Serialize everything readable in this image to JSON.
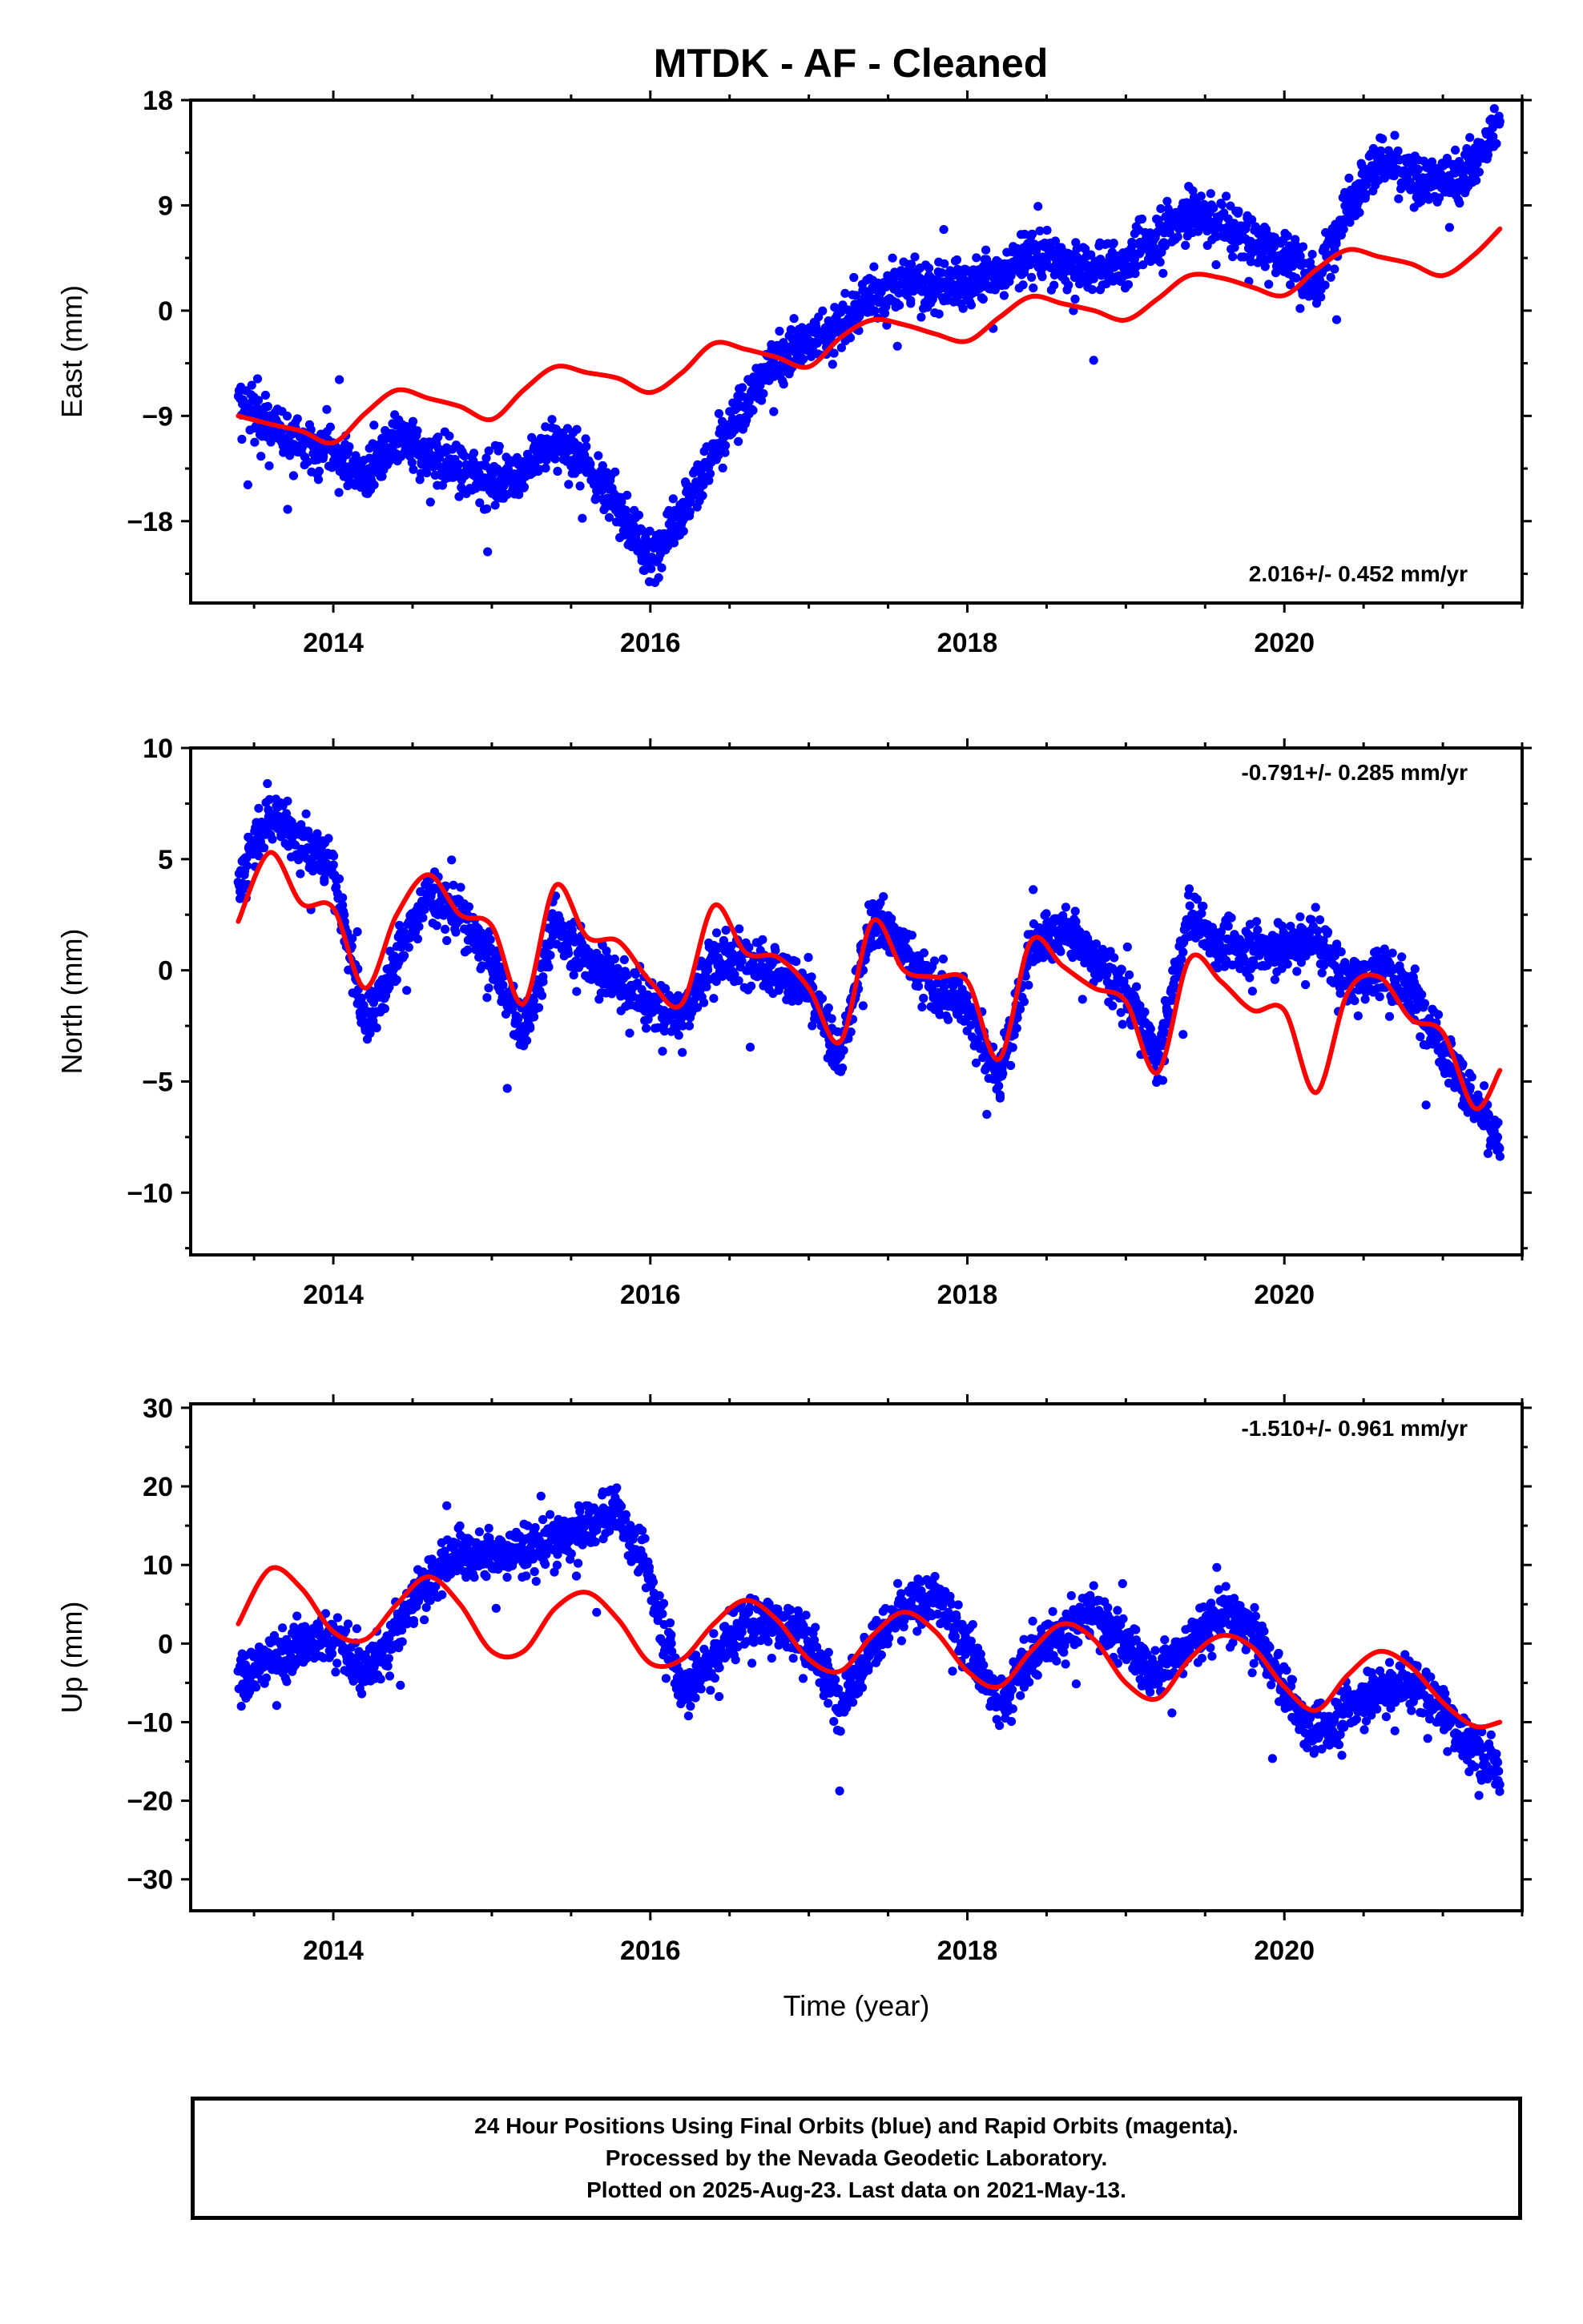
{
  "title": "MTDK  - AF - Cleaned",
  "footer": {
    "lines": [
      "24 Hour Positions Using Final Orbits (blue) and Rapid Orbits (magenta).",
      "Processed by the Nevada Geodetic Laboratory.",
      "Plotted on 2025-Aug-23. Last data on 2021-May-13."
    ]
  },
  "colors": {
    "final_orbits": "#0000ff",
    "rapid_orbits": "#ff00ff",
    "model": "#ff0000",
    "frame": "#000000"
  },
  "chart_data": [
    {
      "type": "scatter",
      "component": "East",
      "ylabel": "East (mm)",
      "xlabel": "",
      "xlim": [
        2013.1,
        2021.5
      ],
      "ylim": [
        -25,
        18
      ],
      "xticks": [
        2014,
        2016,
        2018,
        2020
      ],
      "yticks": [
        -18,
        -9,
        0,
        9,
        18
      ],
      "ytick_labels": [
        "−18",
        "−9",
        "0",
        "9",
        "18"
      ],
      "rate_label": "2.016+/- 0.452 mm/yr",
      "rate_position": "bottom-right",
      "observations": {
        "name": "",
        "x": [
          2013.4,
          2013.6,
          2013.8,
          2014.0,
          2014.2,
          2014.4,
          2014.6,
          2014.8,
          2015.0,
          2015.2,
          2015.4,
          2015.6,
          2015.8,
          2016.0,
          2016.2,
          2016.4,
          2016.6,
          2016.8,
          2017.0,
          2017.2,
          2017.4,
          2017.6,
          2017.8,
          2018.0,
          2018.2,
          2018.4,
          2018.6,
          2018.8,
          2019.0,
          2019.2,
          2019.4,
          2019.6,
          2019.8,
          2020.0,
          2020.2,
          2020.4,
          2020.6,
          2020.8,
          2021.0,
          2021.2,
          2021.36
        ],
        "y": [
          -8.0,
          -10.0,
          -11.5,
          -12.0,
          -14.5,
          -11.0,
          -12.5,
          -13.5,
          -14.5,
          -14.0,
          -11.0,
          -13.0,
          -17.0,
          -21.5,
          -17.0,
          -12.5,
          -8.0,
          -4.0,
          -2.5,
          -1.5,
          1.5,
          2.5,
          2.0,
          2.5,
          3.0,
          5.0,
          4.0,
          3.5,
          4.0,
          6.5,
          8.5,
          7.5,
          6.0,
          5.0,
          2.0,
          9.0,
          13.0,
          11.0,
          11.0,
          12.5,
          16.5
        ]
      },
      "model": {
        "name": "",
        "x": [
          2013.4,
          2013.6,
          2013.8,
          2014.0,
          2014.2,
          2014.4,
          2014.6,
          2014.8,
          2015.0,
          2015.2,
          2015.4,
          2015.6,
          2015.8,
          2016.0,
          2016.2,
          2016.4,
          2016.6,
          2016.8,
          2017.0,
          2017.2,
          2017.4,
          2017.6,
          2017.8,
          2018.0,
          2018.2,
          2018.4,
          2018.6,
          2018.8,
          2019.0,
          2019.2,
          2019.4,
          2019.6,
          2019.8,
          2020.0,
          2020.2,
          2020.4,
          2020.6,
          2020.8,
          2021.0,
          2021.2,
          2021.36
        ],
        "y": [
          -9.0,
          -9.7,
          -10.3,
          -11.3,
          -8.8,
          -6.8,
          -7.5,
          -8.2,
          -9.3,
          -6.8,
          -4.8,
          -5.3,
          -5.8,
          -7.0,
          -5.3,
          -2.8,
          -3.3,
          -4.0,
          -4.8,
          -2.3,
          -0.8,
          -1.2,
          -2.0,
          -2.6,
          -0.6,
          1.2,
          0.6,
          0.0,
          -0.8,
          1.0,
          3.0,
          2.8,
          2.0,
          1.3,
          3.5,
          5.2,
          4.6,
          4.0,
          3.0,
          4.8,
          7.0
        ]
      }
    },
    {
      "type": "scatter",
      "component": "North",
      "ylabel": "North (mm)",
      "xlabel": "",
      "xlim": [
        2013.1,
        2021.5
      ],
      "ylim": [
        -12.8,
        10
      ],
      "xticks": [
        2014,
        2016,
        2018,
        2020
      ],
      "yticks": [
        -10,
        -5,
        0,
        5,
        10
      ],
      "ytick_labels": [
        "−10",
        "−5",
        "0",
        "5",
        "10"
      ],
      "rate_label": "-0.791+/- 0.285 mm/yr",
      "rate_position": "top-right",
      "observations": {
        "name": "",
        "x": [
          2013.4,
          2013.6,
          2013.8,
          2014.0,
          2014.2,
          2014.4,
          2014.6,
          2014.8,
          2015.0,
          2015.2,
          2015.4,
          2015.6,
          2015.8,
          2016.0,
          2016.2,
          2016.4,
          2016.6,
          2016.8,
          2017.0,
          2017.2,
          2017.4,
          2017.6,
          2017.8,
          2018.0,
          2018.2,
          2018.4,
          2018.6,
          2018.8,
          2019.0,
          2019.2,
          2019.4,
          2019.6,
          2019.8,
          2020.0,
          2020.2,
          2020.4,
          2020.6,
          2020.8,
          2021.0,
          2021.2,
          2021.36
        ],
        "y": [
          4.0,
          7.0,
          6.0,
          4.5,
          -2.5,
          0.5,
          3.5,
          2.5,
          0.5,
          -3.0,
          2.0,
          0.5,
          -0.5,
          -1.5,
          -2.0,
          0.5,
          0.5,
          0.0,
          -1.0,
          -4.0,
          2.5,
          1.0,
          -1.0,
          -1.5,
          -5.0,
          1.0,
          2.0,
          0.5,
          -1.0,
          -4.0,
          2.5,
          1.0,
          1.0,
          1.0,
          1.5,
          -0.5,
          0.0,
          -1.0,
          -3.5,
          -6.0,
          -8.0
        ]
      },
      "model": {
        "name": "",
        "x": [
          2013.4,
          2013.6,
          2013.8,
          2014.0,
          2014.2,
          2014.4,
          2014.6,
          2014.8,
          2015.0,
          2015.2,
          2015.4,
          2015.6,
          2015.8,
          2016.0,
          2016.2,
          2016.4,
          2016.6,
          2016.8,
          2017.0,
          2017.2,
          2017.4,
          2017.6,
          2017.8,
          2018.0,
          2018.2,
          2018.4,
          2018.6,
          2018.8,
          2019.0,
          2019.2,
          2019.4,
          2019.6,
          2019.8,
          2020.0,
          2020.2,
          2020.4,
          2020.6,
          2020.8,
          2021.0,
          2021.2,
          2021.36
        ],
        "y": [
          2.2,
          5.3,
          3.0,
          2.8,
          -0.8,
          2.5,
          4.3,
          2.5,
          2.0,
          -1.5,
          3.8,
          1.5,
          1.3,
          -0.5,
          -1.5,
          2.9,
          0.8,
          0.6,
          -0.8,
          -3.2,
          2.2,
          0.0,
          -0.3,
          -0.5,
          -4.0,
          1.3,
          0.2,
          -0.8,
          -1.4,
          -4.6,
          0.5,
          -0.5,
          -1.8,
          -1.8,
          -5.5,
          -1.0,
          -0.3,
          -2.2,
          -2.8,
          -6.2,
          -4.5
        ]
      }
    },
    {
      "type": "scatter",
      "component": "Up",
      "ylabel": "Up (mm)",
      "xlabel": "Time (year)",
      "xlim": [
        2013.1,
        2021.5
      ],
      "ylim": [
        -34,
        30.5
      ],
      "xticks": [
        2014,
        2016,
        2018,
        2020
      ],
      "yticks": [
        -30,
        -20,
        -10,
        0,
        10,
        20,
        30
      ],
      "ytick_labels": [
        "−30",
        "−20",
        "−10",
        "0",
        "10",
        "20",
        "30"
      ],
      "rate_label": "-1.510+/- 0.961 mm/yr",
      "rate_position": "top-right",
      "observations": {
        "name": "",
        "x": [
          2013.4,
          2013.6,
          2013.8,
          2014.0,
          2014.2,
          2014.4,
          2014.6,
          2014.8,
          2015.0,
          2015.2,
          2015.4,
          2015.6,
          2015.8,
          2016.0,
          2016.2,
          2016.4,
          2016.6,
          2016.8,
          2017.0,
          2017.2,
          2017.4,
          2017.6,
          2017.8,
          2018.0,
          2018.2,
          2018.4,
          2018.6,
          2018.8,
          2019.0,
          2019.2,
          2019.4,
          2019.6,
          2019.8,
          2020.0,
          2020.2,
          2020.4,
          2020.6,
          2020.8,
          2021.0,
          2021.2,
          2021.36
        ],
        "y": [
          -5.0,
          -2.0,
          0.0,
          1.0,
          -4.0,
          2.0,
          8.0,
          12.0,
          11.0,
          12.0,
          13.0,
          15.0,
          17.0,
          8.0,
          -6.0,
          -2.0,
          3.0,
          3.0,
          0.0,
          -8.0,
          0.0,
          4.0,
          6.0,
          0.0,
          -8.0,
          -2.0,
          2.0,
          4.0,
          0.0,
          -4.0,
          0.0,
          4.0,
          2.0,
          -6.0,
          -12.0,
          -8.0,
          -6.0,
          -5.0,
          -8.0,
          -14.0,
          -16.0
        ]
      },
      "model": {
        "name": "",
        "x": [
          2013.4,
          2013.6,
          2013.8,
          2014.0,
          2014.2,
          2014.4,
          2014.6,
          2014.8,
          2015.0,
          2015.2,
          2015.4,
          2015.6,
          2015.8,
          2016.0,
          2016.2,
          2016.4,
          2016.6,
          2016.8,
          2017.0,
          2017.2,
          2017.4,
          2017.6,
          2017.8,
          2018.0,
          2018.2,
          2018.4,
          2018.6,
          2018.8,
          2019.0,
          2019.2,
          2019.4,
          2019.6,
          2019.8,
          2020.0,
          2020.2,
          2020.4,
          2020.6,
          2020.8,
          2021.0,
          2021.2,
          2021.36
        ],
        "y": [
          2.5,
          9.5,
          7.0,
          1.5,
          0.5,
          5.0,
          8.5,
          5.0,
          -1.0,
          -1.0,
          4.5,
          6.5,
          3.0,
          -2.5,
          -2.0,
          2.5,
          5.5,
          3.0,
          -2.0,
          -3.5,
          1.0,
          4.0,
          1.5,
          -3.5,
          -5.5,
          -1.0,
          2.5,
          0.5,
          -5.0,
          -7.0,
          -2.0,
          1.0,
          -0.5,
          -5.5,
          -8.5,
          -4.0,
          -1.0,
          -3.0,
          -7.5,
          -10.5,
          -10.0
        ]
      }
    }
  ]
}
